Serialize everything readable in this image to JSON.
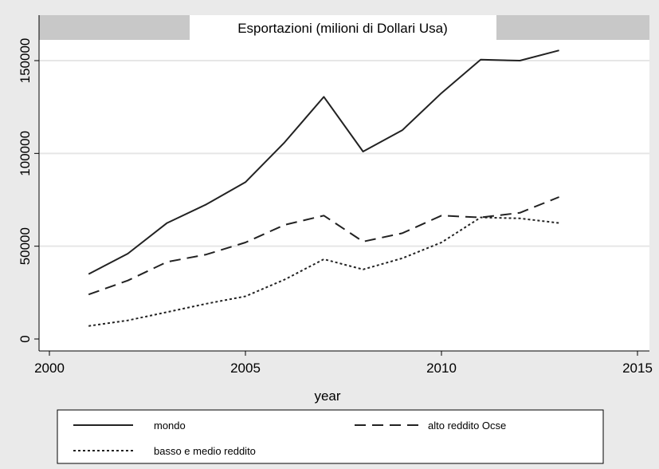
{
  "chart_data": {
    "type": "line",
    "title": "Esportazioni (milioni di Dollari Usa)",
    "xlabel": "year",
    "ylabel": "",
    "xlim": [
      2000,
      2015
    ],
    "ylim": [
      0,
      150000
    ],
    "xticks": [
      2000,
      2005,
      2010,
      2015
    ],
    "yticks": [
      0,
      50000,
      100000,
      150000
    ],
    "xtick_labels": [
      "2000",
      "2005",
      "2010",
      "2015"
    ],
    "ytick_labels": [
      "0",
      "50000",
      "100000",
      "150000"
    ],
    "grid": "horizontal",
    "legend_position": "bottom",
    "x": [
      2001,
      2002,
      2003,
      2004,
      2005,
      2006,
      2007,
      2008,
      2009,
      2010,
      2011,
      2012,
      2013
    ],
    "series": [
      {
        "name": "mondo",
        "style": "solid",
        "color": "#222222",
        "values": [
          35000,
          46000,
          62500,
          72500,
          84500,
          106000,
          130500,
          101000,
          112500,
          132500,
          150500,
          150000,
          155500
        ]
      },
      {
        "name": "alto reddito Ocse",
        "style": "dashed",
        "color": "#222222",
        "values": [
          24000,
          31500,
          41500,
          45500,
          52000,
          61500,
          66500,
          52500,
          57000,
          66500,
          65500,
          68000,
          76500
        ]
      },
      {
        "name": "basso e medio reddito",
        "style": "dotted",
        "color": "#222222",
        "values": [
          7000,
          10000,
          14500,
          19000,
          23000,
          32000,
          43000,
          37500,
          43500,
          52000,
          65500,
          65000,
          62500
        ]
      }
    ]
  },
  "colors": {
    "page_background": "#eaeaea",
    "plot_background": "#ffffff",
    "gridline": "#e6e6e6",
    "title_band": "#c8c8c8"
  }
}
